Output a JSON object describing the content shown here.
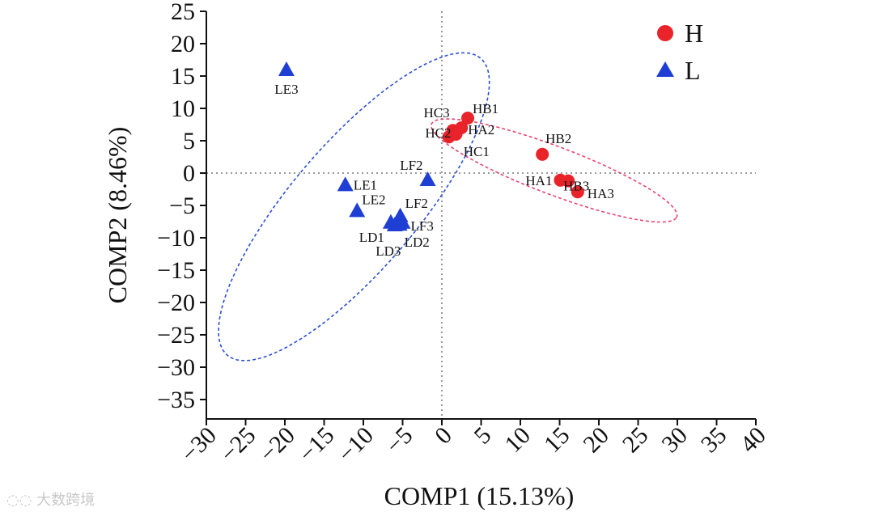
{
  "chart_data": {
    "type": "scatter",
    "xlabel": "COMP1 (15.13%)",
    "ylabel": "COMP2 (8.46%)",
    "xlim": [
      -30,
      40
    ],
    "ylim": [
      -38,
      25
    ],
    "xticks": [
      -30,
      -25,
      -20,
      -15,
      -10,
      -5,
      0,
      5,
      10,
      15,
      20,
      25,
      30,
      35,
      40
    ],
    "yticks": [
      25,
      20,
      15,
      10,
      5,
      0,
      -5,
      -10,
      -15,
      -20,
      -25,
      -30,
      -35
    ],
    "xtick_labels": [
      "−30",
      "−25",
      "−20",
      "−15",
      "−10",
      "−5",
      "0",
      "5",
      "10",
      "15",
      "20",
      "25",
      "30",
      "35",
      "40"
    ],
    "ytick_labels": [
      "25",
      "20",
      "15",
      "10",
      "5",
      "0",
      "−5",
      "−10",
      "−15",
      "−20",
      "−25",
      "−30",
      "−35"
    ],
    "legend_position": "top-right",
    "series": [
      {
        "name": "H",
        "marker": "circle",
        "color": "#e8232a",
        "points": [
          {
            "label": "HB1",
            "x": 3.3,
            "y": 8.5
          },
          {
            "label": "HC3",
            "x": 1.4,
            "y": 6.6
          },
          {
            "label": "HA2",
            "x": 2.5,
            "y": 7.0
          },
          {
            "label": "HC2",
            "x": 1.8,
            "y": 6.0
          },
          {
            "label": "HC1",
            "x": 0.9,
            "y": 5.6
          },
          {
            "label": "HB2",
            "x": 12.8,
            "y": 2.9
          },
          {
            "label": "HB3",
            "x": 16.1,
            "y": -1.2
          },
          {
            "label": "HA1",
            "x": 15.1,
            "y": -1.1
          },
          {
            "label": "HA3",
            "x": 17.3,
            "y": -2.9
          }
        ]
      },
      {
        "name": "L",
        "marker": "triangle",
        "color": "#1f3fd4",
        "points": [
          {
            "label": "LE3",
            "x": -19.8,
            "y": 16.0
          },
          {
            "label": "LF2",
            "x": -1.8,
            "y": -1.0
          },
          {
            "label": "LE1",
            "x": -12.3,
            "y": -1.8
          },
          {
            "label": "LE2",
            "x": -10.8,
            "y": -5.8
          },
          {
            "label": "LF2",
            "x": -5.3,
            "y": -6.6
          },
          {
            "label": "LF3",
            "x": -5.0,
            "y": -7.6
          },
          {
            "label": "LD1",
            "x": -6.5,
            "y": -7.6
          },
          {
            "label": "LD2",
            "x": -5.4,
            "y": -7.9
          },
          {
            "label": "LD3",
            "x": -6.0,
            "y": -8.0
          }
        ]
      }
    ],
    "ellipses": [
      {
        "group": "H",
        "color": "#e8436e",
        "cx": 14.3,
        "cy": 0.4,
        "rx": 17.2,
        "ry": 3.6,
        "angle_deg": -25
      },
      {
        "group": "L",
        "color": "#2b4fd6",
        "cx": -11.2,
        "cy": -5.2,
        "rx": 8.6,
        "ry": 28.1,
        "angle_deg": -34
      }
    ]
  },
  "watermark_text": "大数跨境"
}
